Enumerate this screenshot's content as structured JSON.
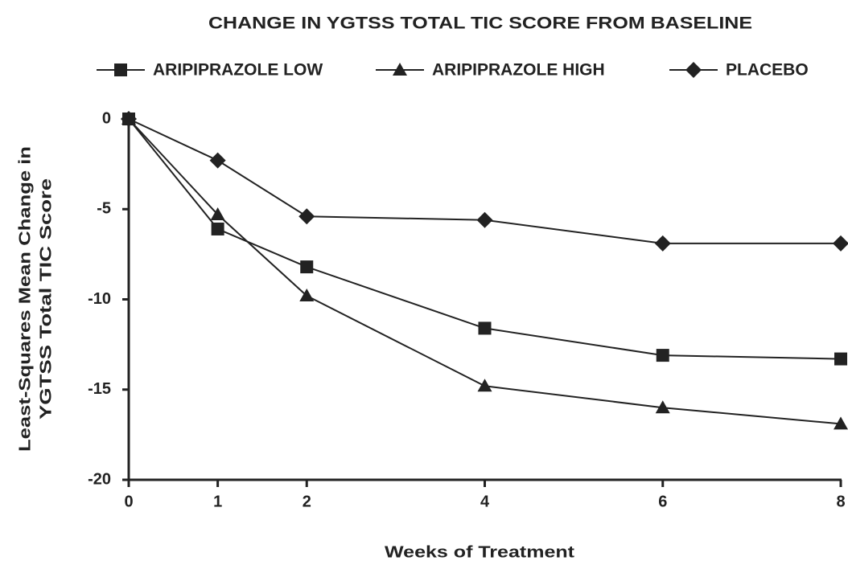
{
  "chart_data": {
    "type": "line",
    "title": "CHANGE IN YGTSS TOTAL TIC SCORE FROM BASELINE",
    "xlabel": "Weeks of Treatment",
    "ylabel": [
      "Least-Squares Mean Change in",
      "YGTSS Total TIC Score"
    ],
    "x": [
      0,
      1,
      2,
      4,
      6,
      8
    ],
    "series": [
      {
        "name": "ARIPIPRAZOLE LOW",
        "color": "#222222",
        "marker": "square",
        "values": [
          0,
          -6.1,
          -8.2,
          -11.6,
          -13.1,
          -13.3
        ]
      },
      {
        "name": "ARIPIPRAZOLE HIGH",
        "color": "#222222",
        "marker": "triangle",
        "values": [
          0,
          -5.3,
          -9.8,
          -14.8,
          -16.0,
          -16.9
        ]
      },
      {
        "name": "PLACEBO",
        "color": "#222222",
        "marker": "diamond",
        "values": [
          0,
          -2.3,
          -5.4,
          -5.6,
          -6.9,
          -6.9
        ]
      }
    ],
    "xlim": [
      0,
      8
    ],
    "xticks": [
      0,
      1,
      2,
      4,
      6,
      8
    ],
    "ylim": [
      -20,
      0
    ],
    "yticks": [
      0,
      -5,
      -10,
      -15,
      -20
    ],
    "grid": false,
    "legend": "top"
  }
}
